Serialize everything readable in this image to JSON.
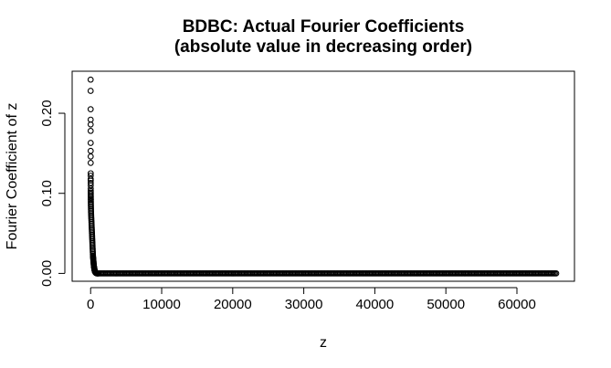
{
  "chart_data": {
    "type": "scatter",
    "title": "BDBC: Actual Fourier Coefficients",
    "subtitle": "(absolute value in decreasing order)",
    "xlabel": "z",
    "ylabel": "Fourier Coefficient of z",
    "xlim": [
      -2600,
      68100
    ],
    "ylim": [
      -0.0098,
      0.2525
    ],
    "x_ticks": [
      0,
      10000,
      20000,
      30000,
      40000,
      50000,
      60000
    ],
    "x_tick_labels": [
      "0",
      "10000",
      "20000",
      "30000",
      "40000",
      "50000",
      "60000"
    ],
    "y_ticks": [
      0.0,
      0.1,
      0.2
    ],
    "y_tick_labels": [
      "0.00",
      "0.10",
      "0.20"
    ],
    "grid": false,
    "marker": "open-circle",
    "marker_color": "#000000",
    "n_points": 65536,
    "series": [
      {
        "x": [
          1,
          2,
          3,
          4,
          5,
          6,
          7,
          8,
          9,
          10,
          11,
          12,
          13,
          14,
          15,
          16,
          17,
          18,
          19,
          20,
          22,
          24,
          26,
          28,
          30,
          33,
          36,
          40,
          45,
          50,
          55,
          60,
          70,
          80,
          90,
          100,
          110,
          120,
          130,
          140,
          150,
          160,
          170,
          180,
          190,
          200,
          210,
          220,
          230,
          240,
          250,
          260,
          270,
          280,
          290,
          300,
          310,
          320,
          330,
          340,
          350,
          360,
          370,
          380,
          390,
          400,
          410,
          420,
          430,
          440,
          450,
          460,
          470,
          480,
          490,
          500,
          510,
          520,
          530,
          540,
          550,
          560,
          570,
          580,
          590,
          600,
          620,
          640,
          660,
          680,
          700,
          720,
          740,
          760,
          780,
          800,
          830,
          860,
          900,
          950,
          1000,
          1100
        ],
        "y": [
          0.242,
          0.228,
          0.205,
          0.192,
          0.186,
          0.178,
          0.163,
          0.153,
          0.146,
          0.138,
          0.125,
          0.122,
          0.118,
          0.116,
          0.113,
          0.11,
          0.106,
          0.103,
          0.101,
          0.099,
          0.097,
          0.095,
          0.093,
          0.092,
          0.09,
          0.088,
          0.086,
          0.084,
          0.082,
          0.08,
          0.078,
          0.076,
          0.074,
          0.072,
          0.07,
          0.068,
          0.066,
          0.064,
          0.062,
          0.06,
          0.058,
          0.056,
          0.054,
          0.052,
          0.05,
          0.048,
          0.046,
          0.044,
          0.042,
          0.04,
          0.038,
          0.036,
          0.034,
          0.032,
          0.03,
          0.028,
          0.026,
          0.024,
          0.022,
          0.021,
          0.02,
          0.019,
          0.018,
          0.017,
          0.016,
          0.015,
          0.014,
          0.013,
          0.012,
          0.011,
          0.01,
          0.009,
          0.0085,
          0.008,
          0.0075,
          0.007,
          0.0065,
          0.006,
          0.0055,
          0.005,
          0.0045,
          0.004,
          0.0035,
          0.003,
          0.0027,
          0.0024,
          0.0021,
          0.0018,
          0.0015,
          0.0012,
          0.001,
          0.0008,
          0.0006,
          0.0005,
          0.0004,
          0.0003,
          0.0002,
          0.0001,
          0.0,
          0.0,
          0.0,
          0.0
        ]
      },
      {
        "x_range": [
          1100,
          65536
        ],
        "y_constant": 0.0
      }
    ]
  }
}
